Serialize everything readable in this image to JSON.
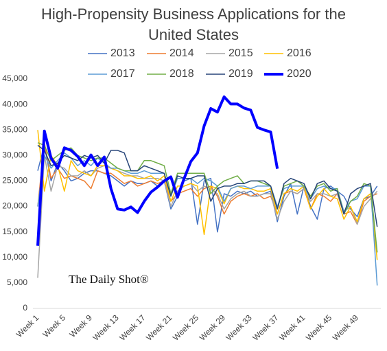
{
  "chart_data": {
    "type": "line",
    "title": "High-Propensity Business Applications for the United States",
    "watermark": "The Daily Shot®",
    "categories": [
      "Week 1",
      null,
      null,
      null,
      "Week 5",
      null,
      null,
      null,
      "Week 9",
      null,
      null,
      null,
      "Week 13",
      null,
      null,
      null,
      "Week 17",
      null,
      null,
      null,
      "Week 21",
      null,
      null,
      null,
      "Week 25",
      null,
      null,
      null,
      "Week 29",
      null,
      null,
      null,
      "Week 33",
      null,
      null,
      null,
      "Week 37",
      null,
      null,
      null,
      "Week 41",
      null,
      null,
      null,
      "Week 45",
      null,
      null,
      null,
      "Week 49",
      null,
      null,
      null
    ],
    "ylim": [
      0,
      45000
    ],
    "yticks": [
      0,
      {
        "value": 5000,
        "label": "5,000"
      },
      {
        "value": 10000,
        "label": "10,000"
      },
      {
        "value": 15000,
        "label": "15,000"
      },
      {
        "value": 20000,
        "label": "20,000"
      },
      {
        "value": 25000,
        "label": "25,000"
      },
      {
        "value": 30000,
        "label": "30,000"
      },
      {
        "value": 35000,
        "label": "35,000"
      },
      {
        "value": 40000,
        "label": "40,000"
      },
      {
        "value": 45000,
        "label": "45,000"
      }
    ],
    "grid": false,
    "series": [
      {
        "name": "2013",
        "color": "#4472c4",
        "width": 1.5,
        "values": [
          27000,
          32000,
          25000,
          28500,
          27000,
          25000,
          25500,
          26500,
          27000,
          27000,
          26500,
          26000,
          25000,
          24000,
          25000,
          24500,
          24500,
          25000,
          24000,
          25000,
          19500,
          22000,
          25000,
          25500,
          16500,
          25000,
          25500,
          15000,
          22500,
          22000,
          23000,
          22500,
          23000,
          22000,
          22500,
          23000,
          17000,
          22000,
          24500,
          18500,
          24000,
          20000,
          17500,
          23500,
          24000,
          23000,
          22000,
          19500,
          18000,
          21500,
          22000,
          24000
        ]
      },
      {
        "name": "2014",
        "color": "#ed7d31",
        "width": 1.5,
        "values": [
          20000,
          32500,
          25500,
          27500,
          25500,
          26000,
          25500,
          25000,
          23500,
          27000,
          26500,
          26500,
          25500,
          24500,
          25000,
          24000,
          24500,
          25000,
          24500,
          25000,
          21000,
          22500,
          23000,
          23500,
          22000,
          23500,
          24000,
          22000,
          18500,
          21000,
          22000,
          22500,
          22000,
          22500,
          21500,
          22000,
          18500,
          22500,
          23000,
          22500,
          23500,
          19500,
          22500,
          22000,
          21000,
          22500,
          18500,
          19000,
          16500,
          21000,
          22000,
          22500
        ]
      },
      {
        "name": "2015",
        "color": "#a5a5a5",
        "width": 1.5,
        "values": [
          6000,
          30000,
          23000,
          28000,
          27500,
          26000,
          26000,
          27000,
          26000,
          27500,
          28000,
          27500,
          27000,
          26500,
          26000,
          26000,
          25500,
          25500,
          25500,
          25000,
          20000,
          23000,
          24000,
          24500,
          23000,
          24000,
          23500,
          22500,
          19500,
          21500,
          22500,
          23000,
          22000,
          22000,
          22500,
          22500,
          17500,
          21000,
          23000,
          22500,
          23500,
          21000,
          22500,
          22500,
          22000,
          22500,
          19000,
          20000,
          16500,
          20000,
          21500,
          23000
        ]
      },
      {
        "name": "2016",
        "color": "#ffc000",
        "width": 1.5,
        "values": [
          35000,
          23000,
          30000,
          28000,
          23000,
          29000,
          27000,
          26500,
          26000,
          28000,
          28000,
          27500,
          27000,
          26000,
          26000,
          25500,
          25500,
          26000,
          25000,
          26000,
          21000,
          24000,
          24000,
          24500,
          24000,
          14500,
          24000,
          23500,
          20500,
          23500,
          24000,
          23500,
          23500,
          23000,
          23000,
          23500,
          18500,
          22500,
          23500,
          23000,
          24000,
          19500,
          22000,
          23500,
          22000,
          21500,
          17500,
          20000,
          17000,
          21500,
          22500,
          9500
        ]
      },
      {
        "name": "2017",
        "color": "#5b9bd5",
        "width": 1.5,
        "values": [
          20000,
          30000,
          27500,
          29000,
          30500,
          29500,
          28000,
          29000,
          28000,
          29500,
          28500,
          27500,
          27500,
          27000,
          26500,
          26500,
          27000,
          26500,
          26500,
          26500,
          22000,
          25500,
          25500,
          25500,
          24500,
          25500,
          25000,
          24000,
          21000,
          23500,
          24000,
          24000,
          23500,
          24000,
          24000,
          24000,
          20000,
          23500,
          24000,
          24000,
          24000,
          21500,
          23500,
          24000,
          23500,
          23500,
          19000,
          21000,
          21500,
          24000,
          24000,
          4500
        ]
      },
      {
        "name": "2018",
        "color": "#70ad47",
        "width": 1.5,
        "values": [
          32500,
          32000,
          29000,
          30000,
          31000,
          31500,
          30000,
          29500,
          29000,
          29500,
          29500,
          28500,
          27500,
          27000,
          27000,
          27000,
          29000,
          29000,
          28500,
          28000,
          22500,
          26500,
          26500,
          26500,
          26500,
          26500,
          22500,
          24000,
          25000,
          25500,
          26000,
          24500,
          25000,
          25000,
          24500,
          24000,
          19500,
          24000,
          24500,
          25000,
          24000,
          22000,
          24000,
          24500,
          23000,
          23500,
          18500,
          21000,
          22000,
          24500,
          24000,
          11000
        ]
      },
      {
        "name": "2019",
        "color": "#264478",
        "width": 1.5,
        "values": [
          32000,
          31000,
          28000,
          28500,
          30000,
          29500,
          29000,
          30000,
          29500,
          30000,
          28500,
          31000,
          31000,
          30500,
          27000,
          27000,
          28000,
          27500,
          27000,
          26500,
          22000,
          26000,
          25500,
          25500,
          26000,
          26000,
          21000,
          23500,
          24000,
          24000,
          24500,
          24500,
          25000,
          25000,
          25000,
          24000,
          19500,
          24500,
          25500,
          25000,
          24500,
          21500,
          24500,
          25000,
          23500,
          23000,
          18500,
          22500,
          23500,
          24000,
          24500,
          16000
        ]
      },
      {
        "name": "2020",
        "color": "#0000ff",
        "width": 4,
        "values": [
          12300,
          34800,
          29500,
          27500,
          31500,
          31000,
          29800,
          28000,
          30100,
          28000,
          29700,
          23500,
          19500,
          19300,
          19900,
          18800,
          21000,
          22800,
          23800,
          25000,
          25800,
          21800,
          25500,
          28800,
          30500,
          35800,
          39200,
          38500,
          41500,
          40100,
          40100,
          39300,
          38900,
          35500,
          35000,
          34600,
          27400,
          null,
          null,
          null,
          null,
          null,
          null,
          null,
          null,
          null,
          null,
          null,
          null,
          null,
          null,
          null
        ]
      }
    ]
  }
}
